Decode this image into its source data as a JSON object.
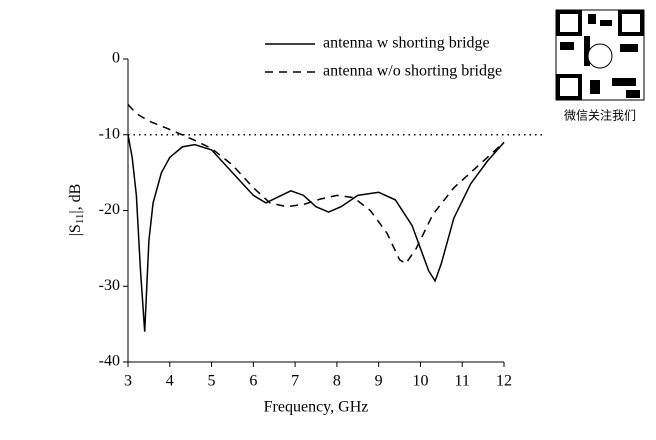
{
  "chart_data": {
    "type": "line",
    "xlabel": "Frequency, GHz",
    "ylabel": [
      "|S",
      "11",
      "|, dB"
    ],
    "xlim": [
      3,
      12
    ],
    "xticks": [
      3,
      4,
      5,
      6,
      7,
      8,
      9,
      10,
      11,
      12
    ],
    "ylim": [
      -40,
      0
    ],
    "yticks": [
      0,
      -10,
      -20,
      -30,
      -40
    ],
    "reference_line": -10,
    "legend": "top-right",
    "series": [
      {
        "name": "antenna w shorting bridge",
        "color": "#000000",
        "dash": "solid",
        "x": [
          3,
          3.1,
          3.2,
          3.3,
          3.4,
          3.5,
          3.6,
          3.8,
          4.0,
          4.3,
          4.6,
          5.0,
          5.5,
          6.0,
          6.3,
          6.6,
          6.9,
          7.2,
          7.5,
          7.8,
          8.1,
          8.5,
          9.0,
          9.4,
          9.8,
          10.2,
          10.35,
          10.5,
          10.8,
          11.2,
          11.6,
          12
        ],
        "values": [
          -10,
          -13,
          -18,
          -28,
          -36,
          -24,
          -19,
          -15,
          -13,
          -11.6,
          -11.3,
          -12,
          -15,
          -18,
          -19,
          -18.2,
          -17.4,
          -18,
          -19.5,
          -20.2,
          -19.5,
          -18,
          -17.6,
          -18.6,
          -22,
          -28,
          -29.3,
          -27,
          -21,
          -16.5,
          -13.5,
          -11
        ]
      },
      {
        "name": "antenna w/o shorting bridge",
        "color": "#000000",
        "dash": "dashed",
        "x": [
          3,
          3.2,
          3.5,
          4.0,
          4.5,
          5.0,
          5.5,
          6.0,
          6.4,
          6.8,
          7.2,
          7.6,
          8.0,
          8.4,
          8.8,
          9.2,
          9.5,
          9.65,
          9.9,
          10.3,
          10.8,
          11.4,
          12
        ],
        "values": [
          -6,
          -7.2,
          -8.2,
          -9.3,
          -10.5,
          -11.8,
          -14,
          -17,
          -19,
          -19.5,
          -19.2,
          -18.5,
          -18,
          -18.3,
          -20,
          -23,
          -26.5,
          -27,
          -25,
          -20.5,
          -17,
          -14,
          -11
        ]
      }
    ]
  },
  "qr_caption": "微信关注我们"
}
